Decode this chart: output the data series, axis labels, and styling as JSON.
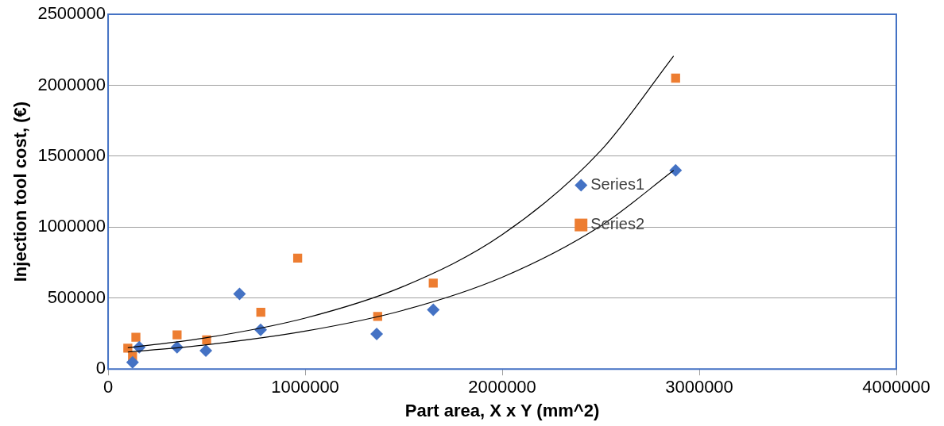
{
  "chart_data": {
    "type": "scatter",
    "xlabel": "Part area, X x Y (mm^2)",
    "ylabel": "Injection tool cost, (€)",
    "xlim": [
      0,
      4000000
    ],
    "xticks": [
      0,
      1000000,
      2000000,
      3000000,
      4000000
    ],
    "ylim": [
      0,
      2500000
    ],
    "yticks": [
      0,
      500000,
      1000000,
      1500000,
      2000000,
      2500000
    ],
    "grid": "y",
    "legend": "right",
    "series": [
      {
        "name": "Series1",
        "color": "#4472c4",
        "marker": "diamond",
        "x": [
          124000,
          158000,
          350000,
          496000,
          667000,
          774000,
          1363000,
          1650000,
          2880000
        ],
        "values": [
          47000,
          153000,
          153000,
          129000,
          529000,
          276000,
          247000,
          418000,
          1400000
        ]
      },
      {
        "name": "Series2",
        "color": "#ed7d31",
        "marker": "square",
        "x": [
          100000,
          141000,
          124000,
          350000,
          500000,
          775000,
          962000,
          1368000,
          1650000,
          2880000
        ],
        "values": [
          147000,
          224000,
          88000,
          241000,
          206000,
          400000,
          782000,
          371000,
          606000,
          2050000
        ]
      },
      {
        "type": "line",
        "color": "#000000",
        "x": [
          100000,
          500000,
          1000000,
          1500000,
          2000000,
          2500000,
          2870000
        ],
        "values": [
          150000,
          221000,
          359000,
          583000,
          947000,
          1539000,
          2206000
        ]
      },
      {
        "type": "line",
        "color": "#000000",
        "x": [
          100000,
          500000,
          1000000,
          1500000,
          2000000,
          2500000,
          2870000
        ],
        "values": [
          120000,
          171000,
          267000,
          415000,
          647000,
          1009000,
          1400000
        ]
      }
    ]
  }
}
